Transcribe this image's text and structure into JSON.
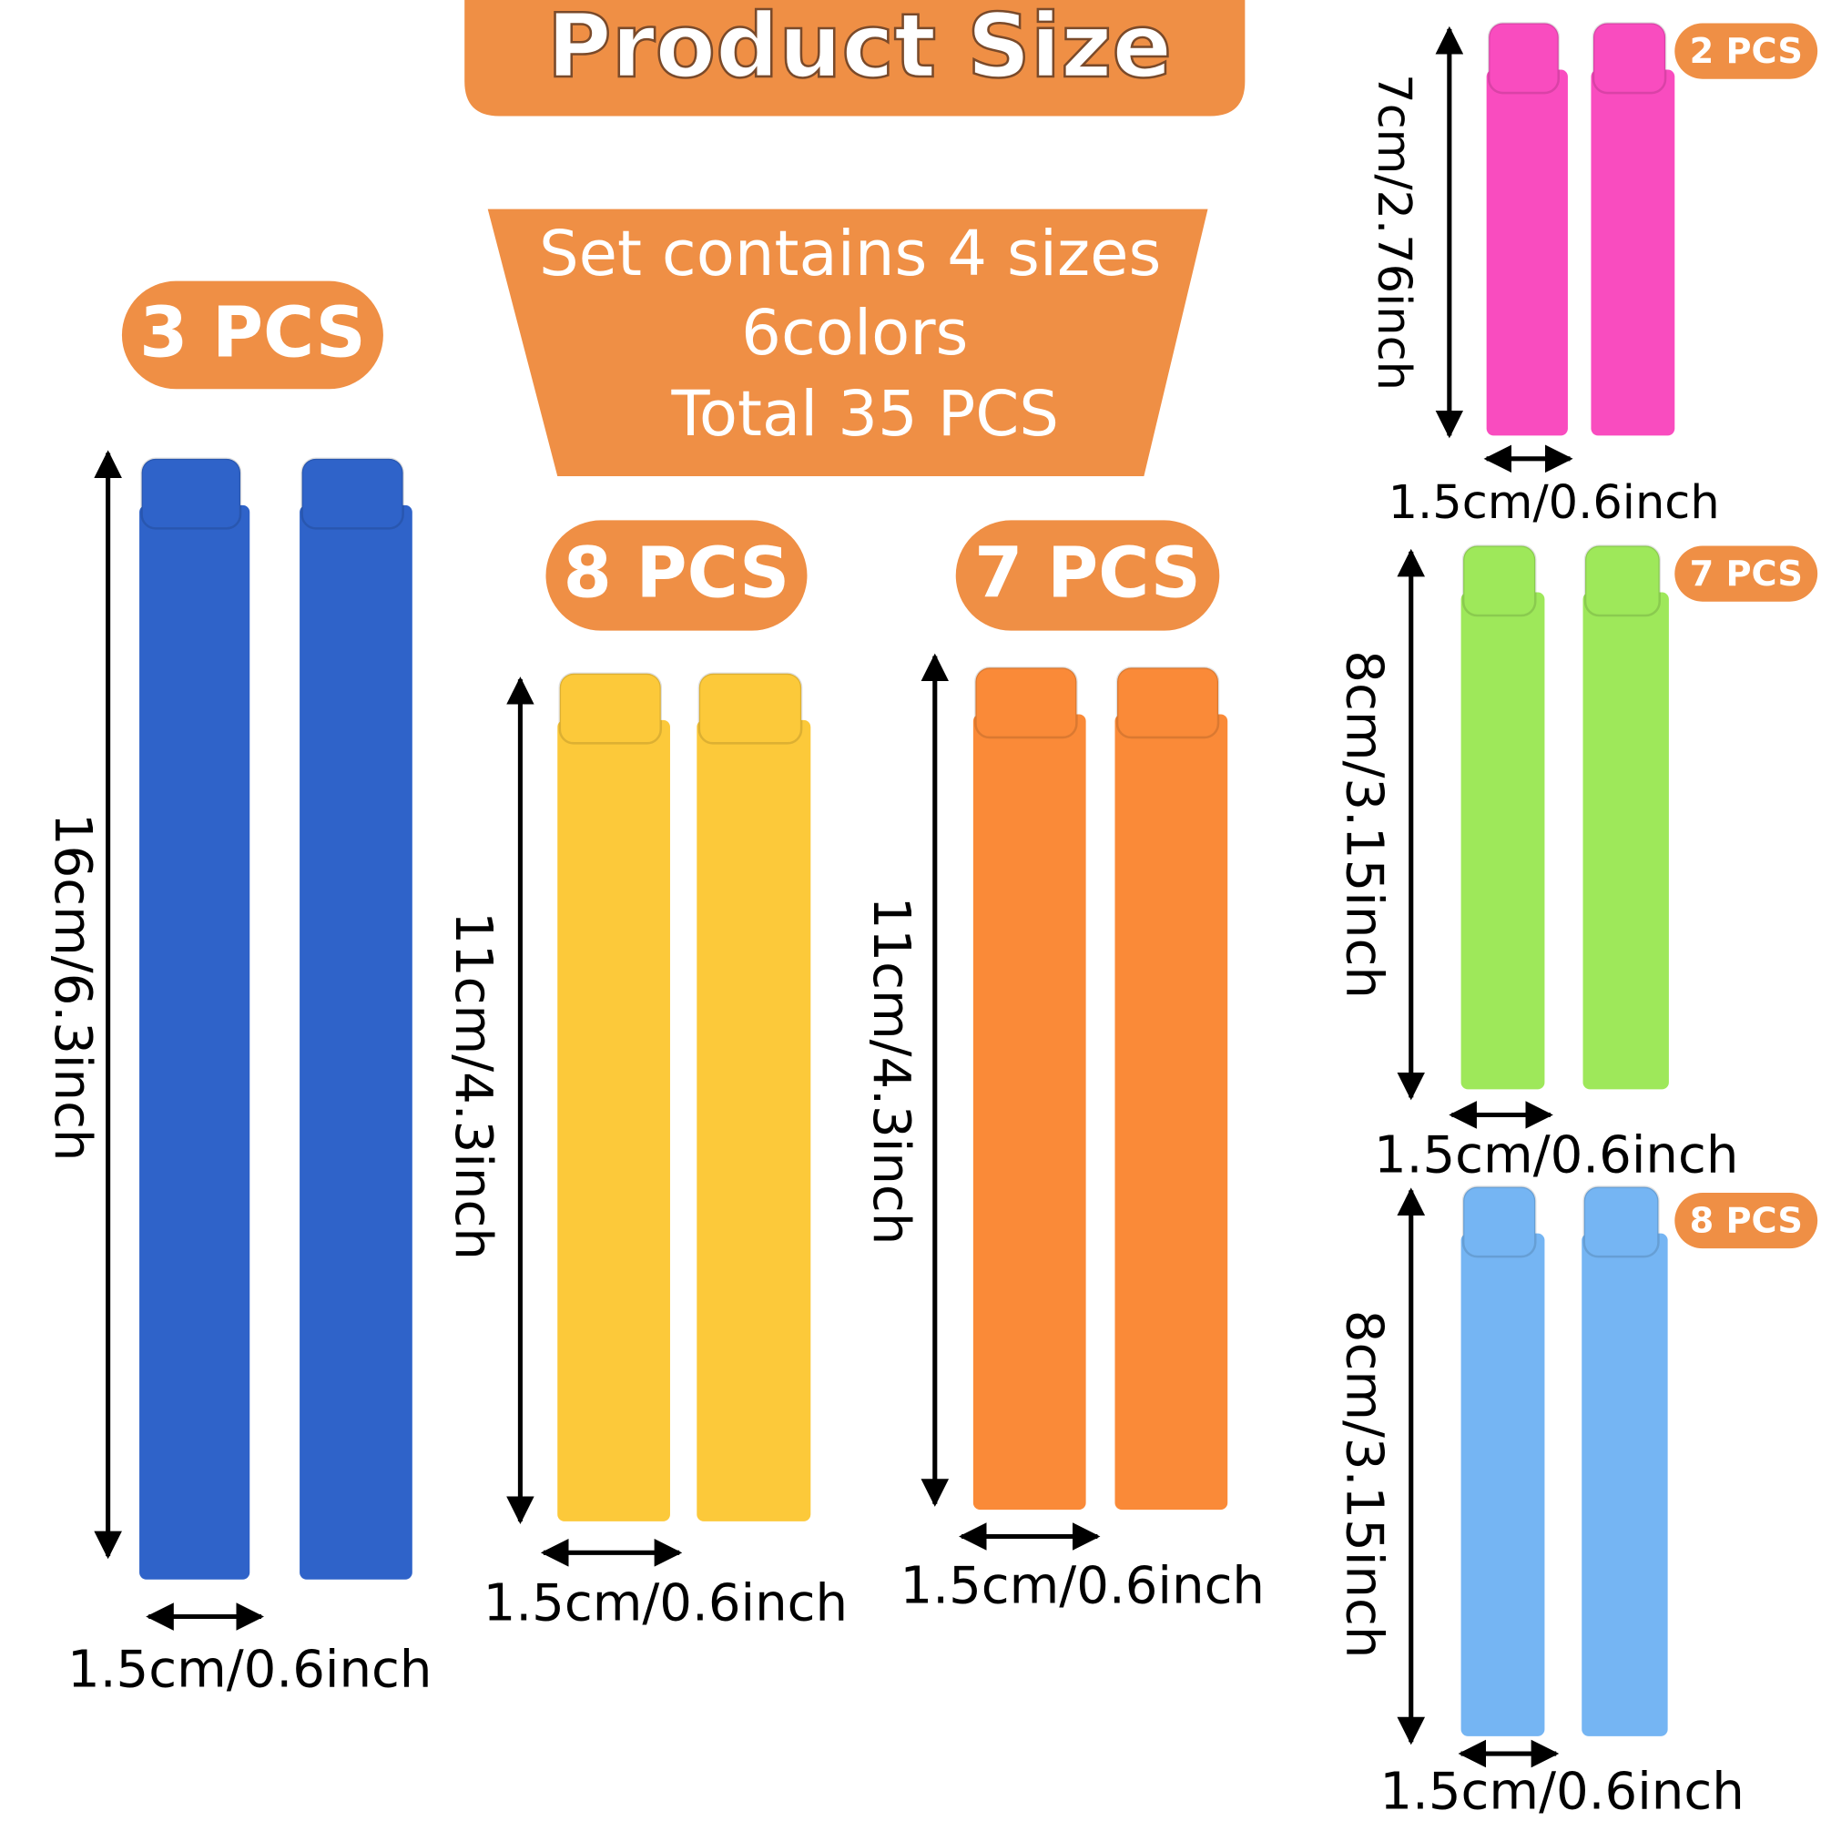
{
  "header": {
    "title": "Product Size"
  },
  "summary": {
    "lines": [
      "Set contains 4 sizes",
      "6colors",
      "Total 35 PCS"
    ]
  },
  "groups": [
    {
      "pcs": "3 PCS",
      "length": "16cm/6.3inch",
      "width": "1.5cm/0.6inch"
    },
    {
      "pcs": "8 PCS",
      "length": "11cm/4.3inch",
      "width": "1.5cm/0.6inch"
    },
    {
      "pcs": "7 PCS",
      "length": "11cm/4.3inch",
      "width": "1.5cm/0.6inch"
    },
    {
      "pcs": "2 PCS",
      "length": "7cm/2.76inch",
      "width": "1.5cm/0.6inch"
    },
    {
      "pcs": "7 PCS",
      "length": "8cm/3.15inch",
      "width": "1.5cm/0.6inch"
    },
    {
      "pcs": "8 PCS",
      "length": "8cm/3.15inch",
      "width": "1.5cm/0.6inch"
    }
  ]
}
